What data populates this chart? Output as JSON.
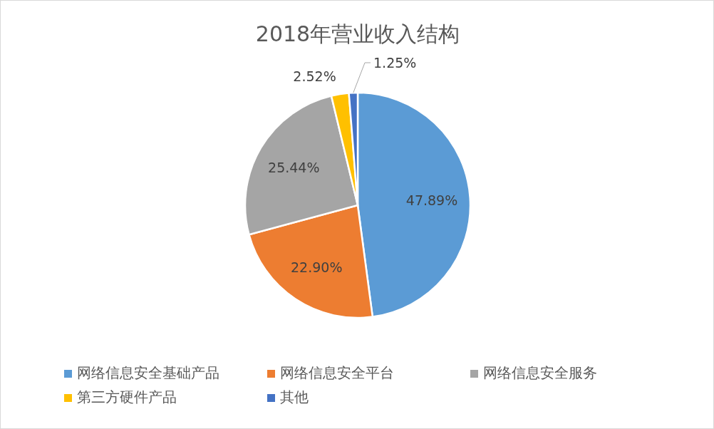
{
  "chart_data": {
    "type": "pie",
    "title": "2018年营业收入结构",
    "categories": [
      "网络信息安全基础产品",
      "网络信息安全平台",
      "网络信息安全服务",
      "第三方硬件产品",
      "其他"
    ],
    "values": [
      47.89,
      22.9,
      25.44,
      2.52,
      1.25
    ],
    "colors": [
      "#5b9bd5",
      "#ed7d31",
      "#a5a5a5",
      "#ffc000",
      "#4472c4"
    ],
    "value_labels": [
      "47.89%",
      "22.90%",
      "25.44%",
      "2.52%",
      "1.25%"
    ],
    "legend": "bottom"
  }
}
